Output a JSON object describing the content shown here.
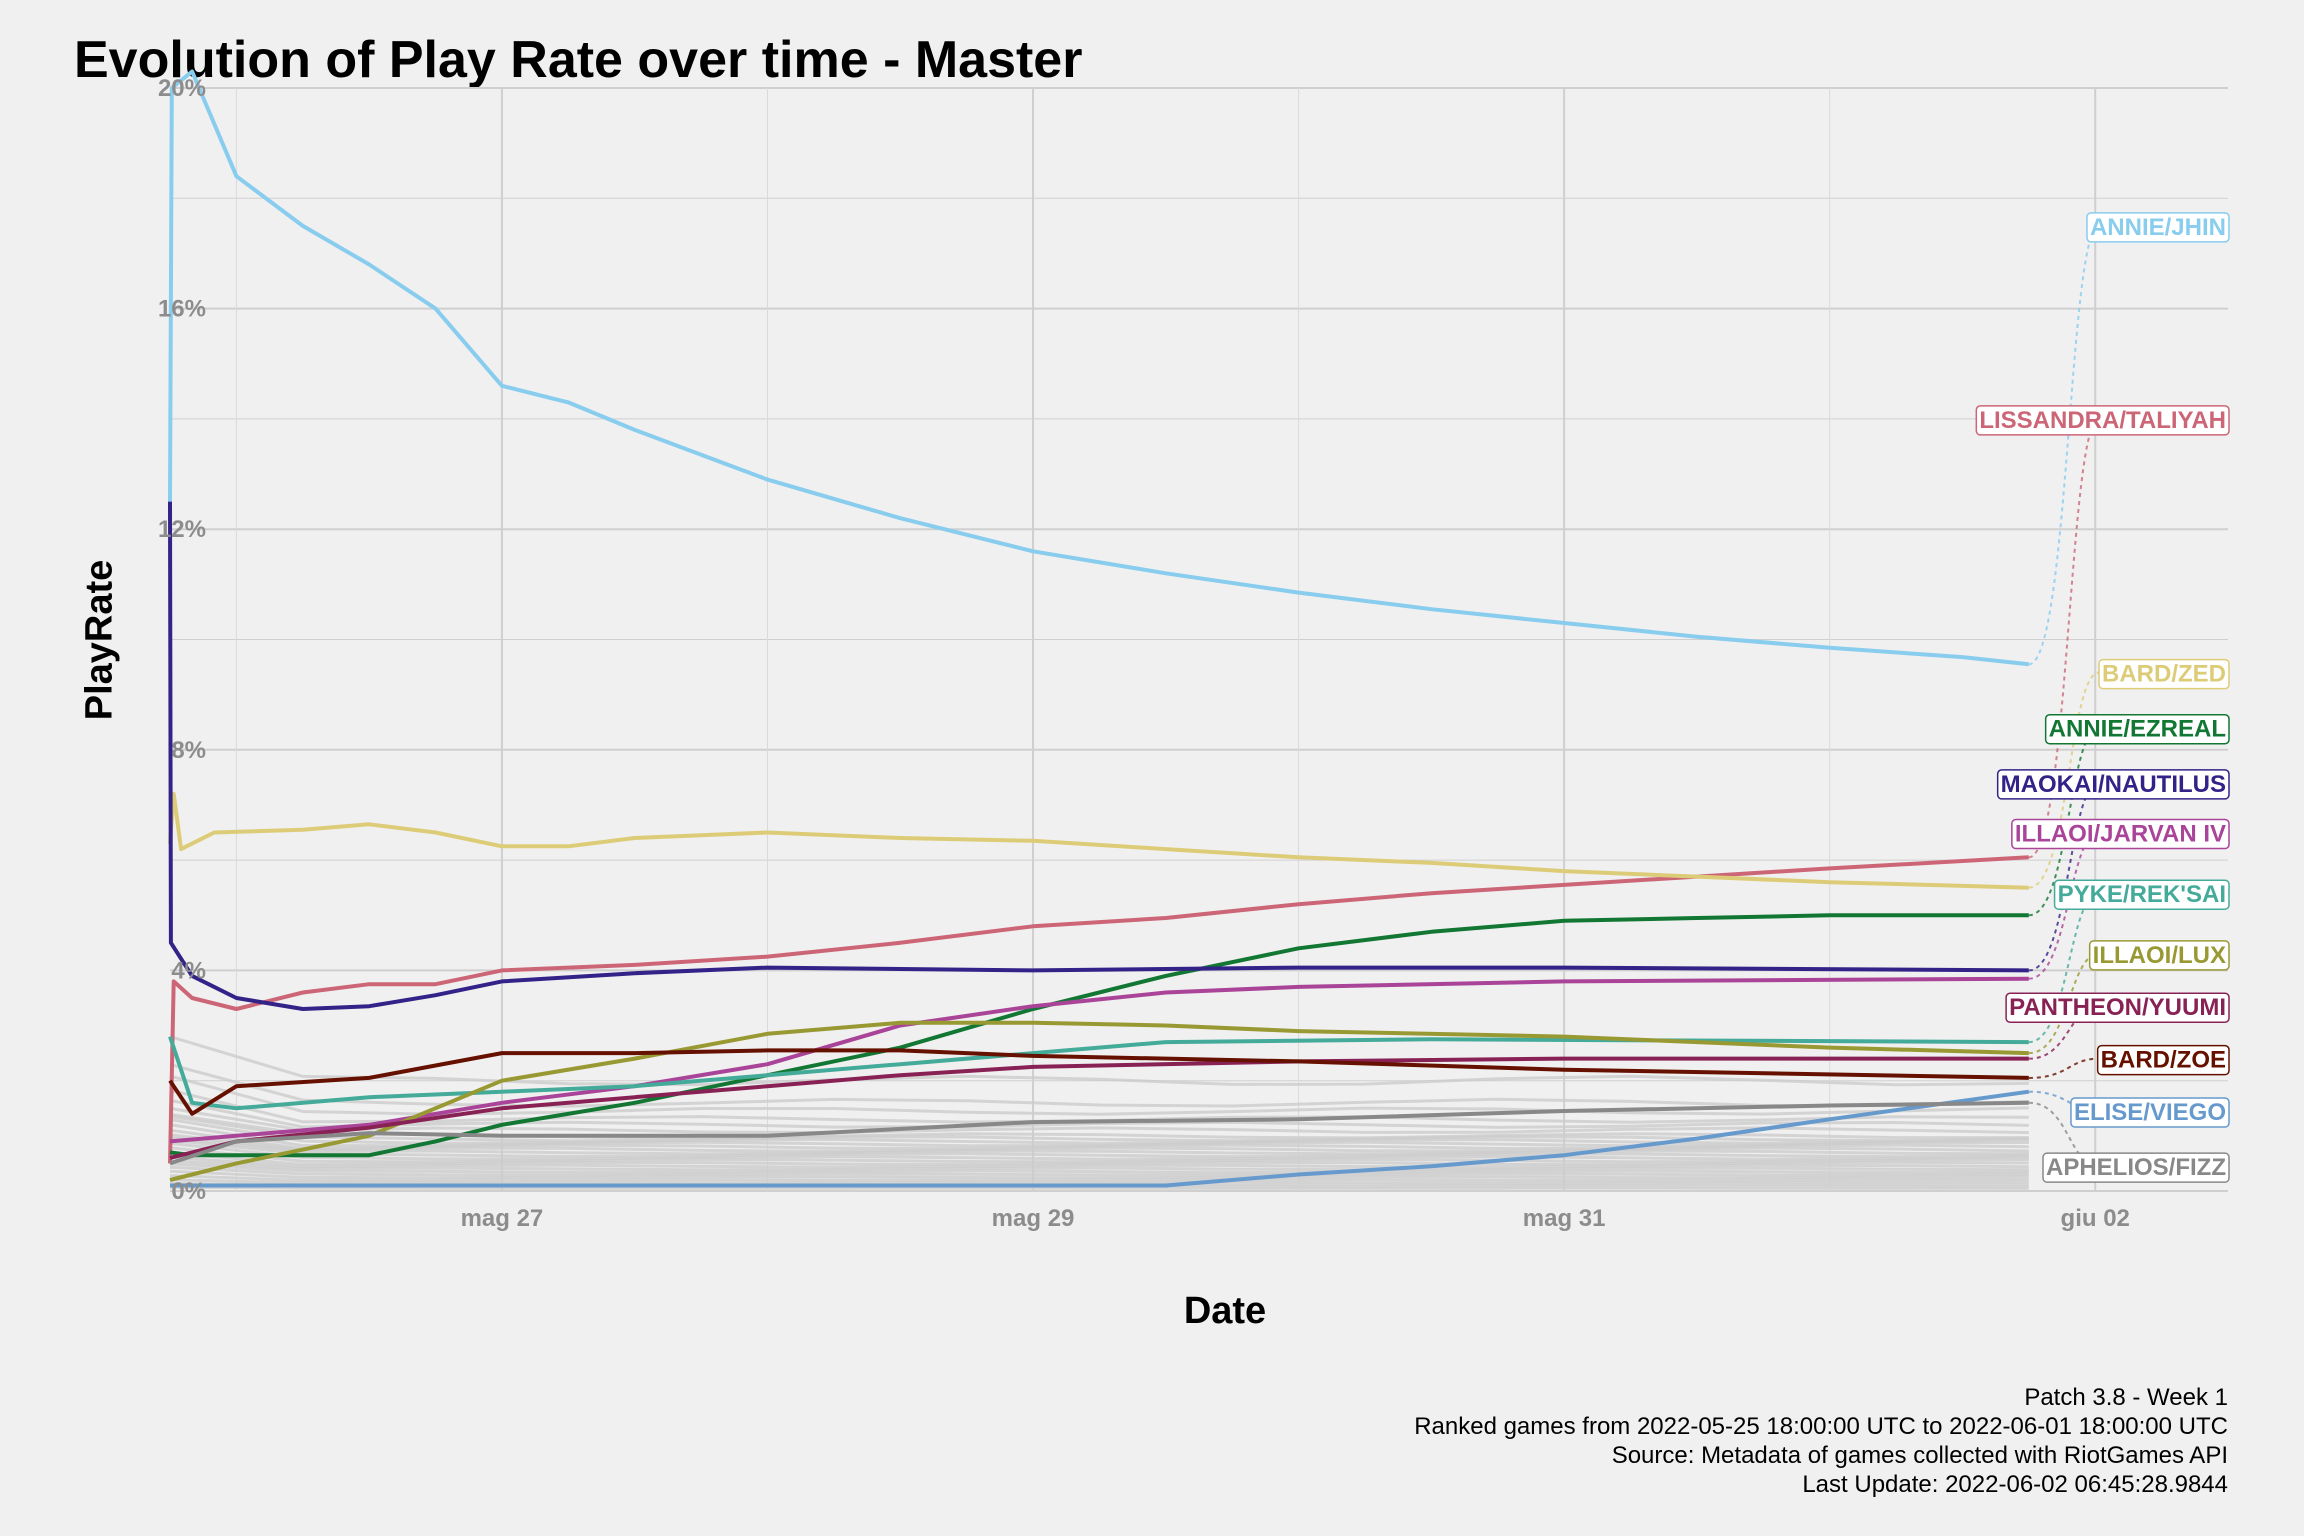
{
  "chart_data": {
    "type": "line",
    "title": "Evolution of Play Rate over time - Master",
    "xlabel": "Date",
    "ylabel": "PlayRate",
    "x_tick_labels": [
      "mag 27",
      "mag 29",
      "mag 31",
      "giu 02"
    ],
    "x_ticks": [
      "2022-05-27",
      "2022-05-29",
      "2022-05-31",
      "2022-06-02"
    ],
    "xlim": [
      "2022-05-25 18:00",
      "2022-06-02 12:00"
    ],
    "y_tick_labels": [
      "0%",
      "4%",
      "8%",
      "12%",
      "16%",
      "20%"
    ],
    "ylim": [
      0,
      20
    ],
    "grid": true,
    "legend": "direct labels at right",
    "series": [
      {
        "name": "ANNIE/JHIN",
        "color": "#88ccee",
        "label_y": 17.5,
        "points": [
          [
            "2022-05-25 18:00",
            12.5
          ],
          [
            "2022-05-25 18:10",
            20.0
          ],
          [
            "2022-05-25 20:00",
            20.3
          ],
          [
            "2022-05-26 00:00",
            18.4
          ],
          [
            "2022-05-26 06:00",
            17.5
          ],
          [
            "2022-05-26 12:00",
            16.8
          ],
          [
            "2022-05-26 18:00",
            16.0
          ],
          [
            "2022-05-27 00:00",
            14.6
          ],
          [
            "2022-05-27 06:00",
            14.3
          ],
          [
            "2022-05-27 12:00",
            13.8
          ],
          [
            "2022-05-28 00:00",
            12.9
          ],
          [
            "2022-05-28 12:00",
            12.2
          ],
          [
            "2022-05-29 00:00",
            11.6
          ],
          [
            "2022-05-29 12:00",
            11.2
          ],
          [
            "2022-05-30 00:00",
            10.85
          ],
          [
            "2022-05-30 12:00",
            10.55
          ],
          [
            "2022-05-31 00:00",
            10.3
          ],
          [
            "2022-05-31 12:00",
            10.05
          ],
          [
            "2022-06-01 00:00",
            9.85
          ],
          [
            "2022-06-01 12:00",
            9.68
          ],
          [
            "2022-06-01 18:00",
            9.55
          ]
        ]
      },
      {
        "name": "LISSANDRA/TALIYAH",
        "color": "#cc6677",
        "label_y": 14.0,
        "points": [
          [
            "2022-05-25 18:00",
            0.5
          ],
          [
            "2022-05-25 18:20",
            3.8
          ],
          [
            "2022-05-25 20:00",
            3.5
          ],
          [
            "2022-05-26 00:00",
            3.3
          ],
          [
            "2022-05-26 06:00",
            3.6
          ],
          [
            "2022-05-26 12:00",
            3.75
          ],
          [
            "2022-05-26 18:00",
            3.75
          ],
          [
            "2022-05-27 00:00",
            4.0
          ],
          [
            "2022-05-27 12:00",
            4.1
          ],
          [
            "2022-05-28 00:00",
            4.25
          ],
          [
            "2022-05-28 12:00",
            4.5
          ],
          [
            "2022-05-29 00:00",
            4.8
          ],
          [
            "2022-05-29 12:00",
            4.95
          ],
          [
            "2022-05-30 00:00",
            5.2
          ],
          [
            "2022-05-30 12:00",
            5.4
          ],
          [
            "2022-05-31 00:00",
            5.55
          ],
          [
            "2022-05-31 12:00",
            5.7
          ],
          [
            "2022-06-01 00:00",
            5.85
          ],
          [
            "2022-06-01 18:00",
            6.05
          ]
        ]
      },
      {
        "name": "BARD/ZED",
        "color": "#ddcc77",
        "label_y": 9.4,
        "points": [
          [
            "2022-05-25 18:00",
            6.3
          ],
          [
            "2022-05-25 18:20",
            7.2
          ],
          [
            "2022-05-25 19:00",
            6.2
          ],
          [
            "2022-05-25 22:00",
            6.5
          ],
          [
            "2022-05-26 06:00",
            6.55
          ],
          [
            "2022-05-26 12:00",
            6.65
          ],
          [
            "2022-05-26 18:00",
            6.5
          ],
          [
            "2022-05-27 00:00",
            6.25
          ],
          [
            "2022-05-27 06:00",
            6.25
          ],
          [
            "2022-05-27 12:00",
            6.4
          ],
          [
            "2022-05-28 00:00",
            6.5
          ],
          [
            "2022-05-28 12:00",
            6.4
          ],
          [
            "2022-05-29 00:00",
            6.35
          ],
          [
            "2022-05-29 12:00",
            6.2
          ],
          [
            "2022-05-30 00:00",
            6.05
          ],
          [
            "2022-05-30 12:00",
            5.95
          ],
          [
            "2022-05-31 00:00",
            5.8
          ],
          [
            "2022-05-31 12:00",
            5.7
          ],
          [
            "2022-06-01 00:00",
            5.6
          ],
          [
            "2022-06-01 18:00",
            5.5
          ]
        ]
      },
      {
        "name": "ANNIE/EZREAL",
        "color": "#117733",
        "label_y": 8.4,
        "points": [
          [
            "2022-05-25 18:00",
            0.7
          ],
          [
            "2022-05-25 20:00",
            0.65
          ],
          [
            "2022-05-26 12:00",
            0.65
          ],
          [
            "2022-05-26 18:00",
            0.9
          ],
          [
            "2022-05-27 00:00",
            1.2
          ],
          [
            "2022-05-27 12:00",
            1.6
          ],
          [
            "2022-05-28 00:00",
            2.1
          ],
          [
            "2022-05-28 12:00",
            2.6
          ],
          [
            "2022-05-29 00:00",
            3.3
          ],
          [
            "2022-05-29 12:00",
            3.9
          ],
          [
            "2022-05-30 00:00",
            4.4
          ],
          [
            "2022-05-30 12:00",
            4.7
          ],
          [
            "2022-05-31 00:00",
            4.9
          ],
          [
            "2022-05-31 12:00",
            4.95
          ],
          [
            "2022-06-01 00:00",
            5.0
          ],
          [
            "2022-06-01 18:00",
            5.0
          ]
        ]
      },
      {
        "name": "MAOKAI/NAUTILUS",
        "color": "#332288",
        "label_y": 7.4,
        "points": [
          [
            "2022-05-25 18:00",
            12.5
          ],
          [
            "2022-05-25 18:05",
            4.5
          ],
          [
            "2022-05-25 20:00",
            3.9
          ],
          [
            "2022-05-26 00:00",
            3.5
          ],
          [
            "2022-05-26 06:00",
            3.3
          ],
          [
            "2022-05-26 12:00",
            3.35
          ],
          [
            "2022-05-26 18:00",
            3.55
          ],
          [
            "2022-05-27 00:00",
            3.8
          ],
          [
            "2022-05-27 12:00",
            3.95
          ],
          [
            "2022-05-28 00:00",
            4.05
          ],
          [
            "2022-05-29 00:00",
            4.0
          ],
          [
            "2022-05-30 00:00",
            4.05
          ],
          [
            "2022-05-31 00:00",
            4.05
          ],
          [
            "2022-06-01 18:00",
            4.0
          ]
        ]
      },
      {
        "name": "ILLAOI/JARVAN IV",
        "color": "#aa4499",
        "label_y": 6.5,
        "points": [
          [
            "2022-05-25 18:00",
            0.9
          ],
          [
            "2022-05-26 00:00",
            1.0
          ],
          [
            "2022-05-26 12:00",
            1.2
          ],
          [
            "2022-05-27 00:00",
            1.6
          ],
          [
            "2022-05-27 12:00",
            1.9
          ],
          [
            "2022-05-28 00:00",
            2.3
          ],
          [
            "2022-05-28 12:00",
            3.0
          ],
          [
            "2022-05-29 00:00",
            3.35
          ],
          [
            "2022-05-29 12:00",
            3.6
          ],
          [
            "2022-05-30 00:00",
            3.7
          ],
          [
            "2022-05-31 00:00",
            3.8
          ],
          [
            "2022-06-01 18:00",
            3.85
          ]
        ]
      },
      {
        "name": "PYKE/REK'SAI",
        "color": "#44aa99",
        "label_y": 5.4,
        "points": [
          [
            "2022-05-25 18:00",
            2.8
          ],
          [
            "2022-05-25 20:00",
            1.6
          ],
          [
            "2022-05-26 00:00",
            1.5
          ],
          [
            "2022-05-26 12:00",
            1.7
          ],
          [
            "2022-05-27 00:00",
            1.8
          ],
          [
            "2022-05-27 12:00",
            1.9
          ],
          [
            "2022-05-28 00:00",
            2.1
          ],
          [
            "2022-05-28 12:00",
            2.3
          ],
          [
            "2022-05-29 00:00",
            2.5
          ],
          [
            "2022-05-29 12:00",
            2.7
          ],
          [
            "2022-05-30 12:00",
            2.75
          ],
          [
            "2022-06-01 18:00",
            2.7
          ]
        ]
      },
      {
        "name": "ILLAOI/LUX",
        "color": "#999933",
        "label_y": 4.3,
        "points": [
          [
            "2022-05-25 18:00",
            0.2
          ],
          [
            "2022-05-26 00:00",
            0.5
          ],
          [
            "2022-05-26 12:00",
            1.0
          ],
          [
            "2022-05-27 00:00",
            2.0
          ],
          [
            "2022-05-27 12:00",
            2.4
          ],
          [
            "2022-05-28 00:00",
            2.85
          ],
          [
            "2022-05-28 12:00",
            3.05
          ],
          [
            "2022-05-29 00:00",
            3.05
          ],
          [
            "2022-05-29 12:00",
            3.0
          ],
          [
            "2022-05-30 00:00",
            2.9
          ],
          [
            "2022-05-31 00:00",
            2.8
          ],
          [
            "2022-05-31 12:00",
            2.7
          ],
          [
            "2022-06-01 00:00",
            2.6
          ],
          [
            "2022-06-01 18:00",
            2.5
          ]
        ]
      },
      {
        "name": "PANTHEON/YUUMI",
        "color": "#882255",
        "label_y": 3.35,
        "points": [
          [
            "2022-05-25 18:00",
            0.6
          ],
          [
            "2022-05-26 00:00",
            0.9
          ],
          [
            "2022-05-26 12:00",
            1.15
          ],
          [
            "2022-05-27 00:00",
            1.5
          ],
          [
            "2022-05-27 12:00",
            1.7
          ],
          [
            "2022-05-28 00:00",
            1.9
          ],
          [
            "2022-05-28 12:00",
            2.1
          ],
          [
            "2022-05-29 00:00",
            2.25
          ],
          [
            "2022-05-30 00:00",
            2.35
          ],
          [
            "2022-05-31 00:00",
            2.4
          ],
          [
            "2022-06-01 18:00",
            2.4
          ]
        ]
      },
      {
        "name": "BARD/ZOE",
        "color": "#661100",
        "label_y": 2.4,
        "points": [
          [
            "2022-05-25 18:00",
            2.0
          ],
          [
            "2022-05-25 20:00",
            1.4
          ],
          [
            "2022-05-26 00:00",
            1.9
          ],
          [
            "2022-05-26 12:00",
            2.05
          ],
          [
            "2022-05-27 00:00",
            2.5
          ],
          [
            "2022-05-27 12:00",
            2.5
          ],
          [
            "2022-05-28 00:00",
            2.55
          ],
          [
            "2022-05-28 12:00",
            2.55
          ],
          [
            "2022-05-29 00:00",
            2.45
          ],
          [
            "2022-05-30 00:00",
            2.35
          ],
          [
            "2022-05-31 00:00",
            2.2
          ],
          [
            "2022-06-01 18:00",
            2.05
          ]
        ]
      },
      {
        "name": "ELISE/VIEGO",
        "color": "#6699cc",
        "label_y": 1.45,
        "points": [
          [
            "2022-05-25 18:00",
            0.1
          ],
          [
            "2022-05-29 12:00",
            0.1
          ],
          [
            "2022-05-30 00:00",
            0.3
          ],
          [
            "2022-05-30 12:00",
            0.45
          ],
          [
            "2022-05-31 00:00",
            0.65
          ],
          [
            "2022-05-31 12:00",
            0.95
          ],
          [
            "2022-06-01 00:00",
            1.3
          ],
          [
            "2022-06-01 18:00",
            1.8
          ]
        ]
      },
      {
        "name": "APHELIOS/FIZZ",
        "color": "#888888",
        "label_y": 0.45,
        "points": [
          [
            "2022-05-25 18:00",
            0.5
          ],
          [
            "2022-05-26 00:00",
            0.9
          ],
          [
            "2022-05-26 12:00",
            1.05
          ],
          [
            "2022-05-27 00:00",
            1.0
          ],
          [
            "2022-05-28 00:00",
            1.0
          ],
          [
            "2022-05-29 00:00",
            1.25
          ],
          [
            "2022-05-30 00:00",
            1.3
          ],
          [
            "2022-05-31 00:00",
            1.45
          ],
          [
            "2022-06-01 00:00",
            1.55
          ],
          [
            "2022-06-01 18:00",
            1.6
          ]
        ]
      }
    ],
    "background_series": {
      "color": "#cccccc",
      "levels": [
        2.0,
        1.6,
        1.45,
        1.3,
        1.2,
        1.1,
        1.0,
        0.95,
        0.9,
        0.85,
        0.8,
        0.75,
        0.7,
        0.65,
        0.6,
        0.55,
        0.5,
        0.45,
        0.4,
        0.35,
        0.3,
        0.25,
        0.2,
        0.15,
        0.1,
        0.05
      ]
    }
  },
  "caption": {
    "line1": "Patch 3.8 - Week 1",
    "line2": "Ranked games from 2022-05-25 18:00:00 UTC to 2022-06-01 18:00:00 UTC",
    "line3": "Source: Metadata of games collected with RiotGames API",
    "line4": "Last Update: 2022-06-02 06:45:28.9844"
  }
}
